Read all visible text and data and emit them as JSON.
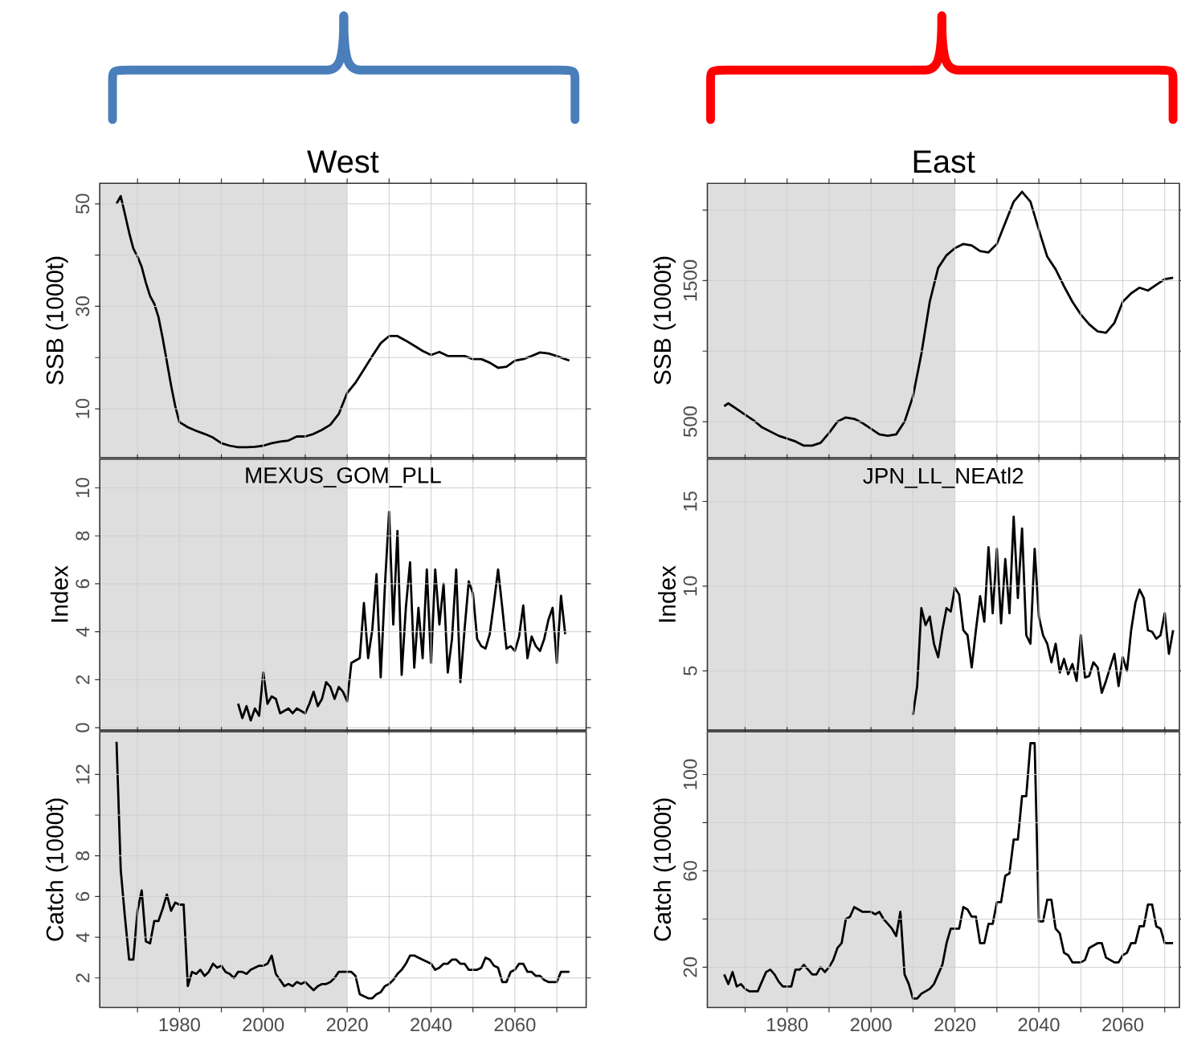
{
  "chart_data": [
    {
      "type": "line",
      "title": "West",
      "ylabel": "SSB (1000t)",
      "grid": true,
      "tick_labels": "y",
      "xlim": [
        1961,
        2077
      ],
      "ylim": [
        0.5,
        54
      ],
      "xticks": [
        {
          "value": 1970,
          "label": null
        },
        1980,
        {
          "value": 1990,
          "label": null
        },
        2000,
        {
          "value": 2010,
          "label": null
        },
        2020,
        {
          "value": 2030,
          "label": null
        },
        2040,
        {
          "value": 2050,
          "label": null
        },
        2060,
        {
          "value": 2070,
          "label": null
        }
      ],
      "yticks": [
        10,
        {
          "value": 20,
          "label": null
        },
        30,
        {
          "value": 40,
          "label": null
        },
        50
      ],
      "bands": [
        {
          "axis": "x",
          "from": 1961,
          "to": 2020,
          "color": "#dedede"
        }
      ],
      "x": [
        1965,
        1966,
        1967,
        1968,
        1969,
        1970,
        1971,
        1972,
        1973,
        1974,
        1975,
        1976,
        1977,
        1978,
        1979,
        1980,
        1982,
        1984,
        1986,
        1988,
        1990,
        1992,
        1994,
        1996,
        1998,
        2000,
        2002,
        2004,
        2006,
        2008,
        2010,
        2012,
        2014,
        2016,
        2018,
        2020,
        2022,
        2024,
        2026,
        2028,
        2030,
        2032,
        2034,
        2036,
        2038,
        2040,
        2042,
        2044,
        2046,
        2048,
        2050,
        2052,
        2054,
        2056,
        2058,
        2060,
        2062,
        2064,
        2066,
        2068,
        2070,
        2073
      ],
      "series": [
        {
          "color": "#000000",
          "values": [
            50,
            51.5,
            48,
            44.4,
            41.3,
            39.7,
            37.7,
            34.6,
            32,
            30.5,
            27.9,
            23.8,
            19.2,
            14.6,
            10.5,
            7.4,
            6.4,
            5.7,
            5.1,
            4.4,
            3.3,
            2.8,
            2.5,
            2.5,
            2.6,
            2.8,
            3.3,
            3.6,
            3.8,
            4.6,
            4.6,
            5.1,
            5.9,
            6.9,
            9,
            13.1,
            15.1,
            17.7,
            20.3,
            22.8,
            24.2,
            24.2,
            23.3,
            22.3,
            21.3,
            20.5,
            21.1,
            20.3,
            20.3,
            20.3,
            19.7,
            19.7,
            19,
            18,
            18.2,
            19.4,
            19.7,
            20.3,
            21,
            20.8,
            20.3,
            19.4
          ]
        }
      ]
    },
    {
      "type": "line",
      "title": "East",
      "ylabel": "SSB (1000t)",
      "grid": true,
      "tick_labels": "y",
      "xlim": [
        1961,
        2073.5
      ],
      "ylim": [
        246,
        2190
      ],
      "xticks": [
        {
          "value": 1970,
          "label": null
        },
        1980,
        {
          "value": 1990,
          "label": null
        },
        2000,
        {
          "value": 2010,
          "label": null
        },
        2020,
        {
          "value": 2030,
          "label": null
        },
        2040,
        {
          "value": 2050,
          "label": null
        },
        2060,
        {
          "value": 2070,
          "label": null
        }
      ],
      "yticks": [
        500,
        {
          "value": 1000,
          "label": null
        },
        1500,
        {
          "value": 2000,
          "label": null
        }
      ],
      "bands": [
        {
          "axis": "x",
          "from": 1961,
          "to": 2020,
          "color": "#dedede"
        }
      ],
      "x": [
        1965,
        1966,
        1968,
        1970,
        1972,
        1974,
        1976,
        1978,
        1980,
        1982,
        1984,
        1986,
        1988,
        1990,
        1992,
        1994,
        1996,
        1998,
        2000,
        2002,
        2004,
        2006,
        2008,
        2010,
        2012,
        2014,
        2016,
        2018,
        2020,
        2022,
        2024,
        2026,
        2028,
        2030,
        2032,
        2034,
        2036,
        2038,
        2040,
        2042,
        2044,
        2046,
        2048,
        2050,
        2052,
        2054,
        2056,
        2058,
        2060,
        2062,
        2064,
        2066,
        2068,
        2070,
        2072
      ],
      "series": [
        {
          "color": "#000000",
          "values": [
            610,
            630,
            590,
            550,
            510,
            460,
            430,
            400,
            380,
            360,
            330,
            330,
            350,
            420,
            500,
            530,
            520,
            490,
            450,
            410,
            400,
            410,
            500,
            680,
            980,
            1350,
            1590,
            1680,
            1730,
            1760,
            1750,
            1710,
            1700,
            1760,
            1910,
            2060,
            2130,
            2060,
            1860,
            1670,
            1580,
            1460,
            1350,
            1260,
            1190,
            1140,
            1130,
            1200,
            1350,
            1410,
            1450,
            1430,
            1470,
            1510,
            1520
          ]
        }
      ]
    },
    {
      "type": "line",
      "ylabel": "Index",
      "annotations": [
        "MEXUS_GOM_PLL"
      ],
      "grid": true,
      "tick_labels": "y",
      "xlim": [
        1961,
        2077
      ],
      "ylim": [
        -0.1,
        11.2
      ],
      "xticks": [
        {
          "value": 1970,
          "label": null
        },
        1980,
        {
          "value": 1990,
          "label": null
        },
        2000,
        {
          "value": 2010,
          "label": null
        },
        2020,
        {
          "value": 2030,
          "label": null
        },
        2040,
        {
          "value": 2050,
          "label": null
        },
        2060,
        {
          "value": 2070,
          "label": null
        }
      ],
      "yticks": [
        0,
        2,
        4,
        6,
        8,
        10
      ],
      "bands": [
        {
          "axis": "x",
          "from": 1961,
          "to": 2020,
          "color": "#dedede"
        }
      ],
      "x": [
        1994,
        1995,
        1996,
        1997,
        1998,
        1999,
        2000,
        2001,
        2002,
        2003,
        2004,
        2005,
        2006,
        2007,
        2008,
        2009,
        2010,
        2011,
        2012,
        2013,
        2014,
        2015,
        2016,
        2017,
        2018,
        2019,
        2020,
        2021,
        2022,
        2023,
        2024,
        2025,
        2026,
        2027,
        2028,
        2029,
        2030,
        2031,
        2032,
        2033,
        2034,
        2035,
        2036,
        2037,
        2038,
        2039,
        2040,
        2041,
        2042,
        2043,
        2044,
        2045,
        2046,
        2047,
        2048,
        2049,
        2050,
        2051,
        2052,
        2053,
        2054,
        2055,
        2056,
        2057,
        2058,
        2059,
        2060,
        2061,
        2062,
        2063,
        2064,
        2065,
        2066,
        2067,
        2068,
        2069,
        2070,
        2071,
        2072
      ],
      "series": [
        {
          "color": "#000000",
          "values": [
            1.0,
            0.4,
            0.9,
            0.3,
            0.8,
            0.5,
            2.3,
            1.0,
            1.3,
            1.2,
            0.6,
            0.7,
            0.8,
            0.6,
            0.8,
            0.7,
            0.6,
            1.0,
            1.5,
            0.9,
            1.2,
            1.9,
            1.7,
            1.2,
            1.7,
            1.5,
            1.1,
            2.7,
            2.8,
            2.9,
            5.2,
            2.9,
            4.1,
            6.4,
            2.1,
            5.9,
            9.0,
            4.3,
            8.2,
            2.2,
            5.0,
            6.9,
            2.5,
            5.0,
            2.9,
            6.6,
            2.7,
            6.6,
            4.3,
            6.0,
            2.3,
            3.7,
            6.6,
            1.9,
            4.1,
            6.1,
            5.6,
            3.7,
            3.4,
            3.3,
            3.9,
            5.2,
            6.6,
            5.0,
            3.3,
            3.4,
            3.2,
            3.8,
            5.1,
            2.9,
            3.8,
            3.4,
            3.2,
            3.7,
            4.5,
            5.0,
            2.7,
            5.5,
            3.9
          ]
        }
      ]
    },
    {
      "type": "line",
      "ylabel": "Index",
      "annotations": [
        "JPN_LL_NEAtl2"
      ],
      "grid": true,
      "tick_labels": "y",
      "xlim": [
        1961,
        2073.5
      ],
      "ylim": [
        1.5,
        17.5
      ],
      "xticks": [
        {
          "value": 1970,
          "label": null
        },
        1980,
        {
          "value": 1990,
          "label": null
        },
        2000,
        {
          "value": 2010,
          "label": null
        },
        2020,
        {
          "value": 2030,
          "label": null
        },
        2040,
        {
          "value": 2050,
          "label": null
        },
        2060,
        {
          "value": 2070,
          "label": null
        }
      ],
      "yticks": [
        5,
        10,
        15
      ],
      "bands": [
        {
          "axis": "x",
          "from": 1961,
          "to": 2020,
          "color": "#dedede"
        }
      ],
      "x": [
        2010,
        2011,
        2012,
        2013,
        2014,
        2015,
        2016,
        2017,
        2018,
        2019,
        2020,
        2021,
        2022,
        2023,
        2024,
        2025,
        2026,
        2027,
        2028,
        2029,
        2030,
        2031,
        2032,
        2033,
        2034,
        2035,
        2036,
        2037,
        2038,
        2039,
        2040,
        2041,
        2042,
        2043,
        2044,
        2045,
        2046,
        2047,
        2048,
        2049,
        2050,
        2051,
        2052,
        2053,
        2054,
        2055,
        2056,
        2057,
        2058,
        2059,
        2060,
        2061,
        2062,
        2063,
        2064,
        2065,
        2066,
        2067,
        2068,
        2069,
        2070,
        2071,
        2072
      ],
      "series": [
        {
          "color": "#000000",
          "values": [
            2.4,
            4.1,
            8.7,
            7.7,
            8.2,
            6.6,
            5.8,
            7.4,
            8.7,
            8.5,
            9.9,
            9.5,
            7.4,
            7.1,
            5.2,
            7.4,
            9.4,
            7.9,
            12.3,
            8.4,
            12.2,
            7.8,
            11.6,
            8.4,
            14.1,
            9.3,
            13.4,
            7.1,
            6.6,
            12.2,
            8.2,
            7.1,
            6.6,
            5.5,
            6.6,
            4.9,
            5.7,
            4.8,
            5.4,
            4.4,
            7.1,
            4.6,
            4.7,
            5.5,
            5.2,
            3.7,
            4.4,
            5.2,
            6.0,
            4.1,
            5.8,
            5.0,
            7.4,
            9.0,
            9.8,
            9.3,
            7.4,
            7.3,
            6.9,
            7.1,
            8.4,
            6.0,
            7.4
          ]
        }
      ]
    },
    {
      "type": "line",
      "ylabel": "Catch (1000t)",
      "grid": true,
      "xlim": [
        1961,
        2077
      ],
      "ylim": [
        0.55,
        14.1
      ],
      "xticks": [
        {
          "value": 1970,
          "label": null
        },
        1980,
        {
          "value": 1990,
          "label": null
        },
        2000,
        {
          "value": 2010,
          "label": null
        },
        2020,
        {
          "value": 2030,
          "label": null
        },
        2040,
        {
          "value": 2050,
          "label": null
        },
        2060,
        {
          "value": 2070,
          "label": null
        }
      ],
      "yticks": [
        2,
        4,
        6,
        8,
        {
          "value": 10,
          "label": null
        },
        12
      ],
      "bands": [
        {
          "axis": "x",
          "from": 1961,
          "to": 2020,
          "color": "#dedede"
        }
      ],
      "x": [
        1965,
        1966,
        1967,
        1968,
        1969,
        1970,
        1971,
        1972,
        1973,
        1974,
        1975,
        1976,
        1977,
        1978,
        1979,
        1980,
        1981,
        1982,
        1983,
        1984,
        1985,
        1986,
        1987,
        1988,
        1989,
        1990,
        1991,
        1992,
        1993,
        1994,
        1995,
        1996,
        1997,
        1998,
        1999,
        2000,
        2001,
        2002,
        2003,
        2004,
        2005,
        2006,
        2007,
        2008,
        2009,
        2010,
        2011,
        2012,
        2013,
        2014,
        2015,
        2016,
        2017,
        2018,
        2019,
        2020,
        2021,
        2022,
        2023,
        2024,
        2025,
        2026,
        2027,
        2028,
        2029,
        2030,
        2031,
        2032,
        2033,
        2034,
        2035,
        2036,
        2037,
        2038,
        2039,
        2040,
        2041,
        2042,
        2043,
        2044,
        2045,
        2046,
        2047,
        2048,
        2049,
        2050,
        2051,
        2052,
        2053,
        2054,
        2055,
        2056,
        2057,
        2058,
        2059,
        2060,
        2061,
        2062,
        2063,
        2064,
        2065,
        2066,
        2067,
        2068,
        2069,
        2070,
        2071,
        2072,
        2073
      ],
      "series": [
        {
          "color": "#000000",
          "values": [
            13.6,
            7.3,
            5.0,
            2.9,
            2.9,
            5.3,
            6.3,
            3.8,
            3.7,
            4.8,
            4.8,
            5.4,
            6.1,
            5.3,
            5.7,
            5.6,
            5.6,
            1.6,
            2.3,
            2.2,
            2.4,
            2.1,
            2.3,
            2.7,
            2.5,
            2.6,
            2.3,
            2.2,
            2.0,
            2.3,
            2.3,
            2.2,
            2.4,
            2.5,
            2.6,
            2.6,
            2.7,
            3.1,
            2.2,
            1.9,
            1.6,
            1.7,
            1.6,
            1.8,
            1.7,
            1.8,
            1.6,
            1.4,
            1.6,
            1.7,
            1.7,
            1.8,
            2.0,
            2.3,
            2.3,
            2.3,
            2.3,
            2.1,
            1.2,
            1.1,
            1.0,
            1.0,
            1.2,
            1.3,
            1.6,
            1.7,
            1.9,
            2.2,
            2.4,
            2.7,
            3.1,
            3.1,
            3.0,
            2.9,
            2.8,
            2.7,
            2.4,
            2.5,
            2.7,
            2.7,
            2.9,
            2.9,
            2.7,
            2.7,
            2.4,
            2.4,
            2.4,
            2.5,
            3.0,
            2.9,
            2.6,
            2.5,
            1.8,
            1.8,
            2.3,
            2.4,
            2.7,
            2.7,
            2.3,
            2.3,
            2.1,
            2.1,
            1.9,
            1.8,
            1.8,
            1.8,
            2.3,
            2.3,
            2.3
          ]
        }
      ]
    },
    {
      "type": "line",
      "ylabel": "Catch (1000t)",
      "grid": true,
      "xlim": [
        1961,
        2073.5
      ],
      "ylim": [
        3.3,
        117.8
      ],
      "xticks": [
        {
          "value": 1970,
          "label": null
        },
        1980,
        {
          "value": 1990,
          "label": null
        },
        2000,
        {
          "value": 2010,
          "label": null
        },
        2020,
        {
          "value": 2030,
          "label": null
        },
        2040,
        {
          "value": 2050,
          "label": null
        },
        2060,
        {
          "value": 2070,
          "label": null
        }
      ],
      "yticks": [
        20,
        {
          "value": 40,
          "label": null
        },
        60,
        {
          "value": 80,
          "label": null
        },
        100
      ],
      "bands": [
        {
          "axis": "x",
          "from": 1961,
          "to": 2020,
          "color": "#dedede"
        }
      ],
      "x": [
        1965,
        1966,
        1967,
        1968,
        1969,
        1970,
        1971,
        1972,
        1973,
        1974,
        1975,
        1976,
        1977,
        1978,
        1979,
        1980,
        1981,
        1982,
        1983,
        1984,
        1985,
        1986,
        1987,
        1988,
        1989,
        1990,
        1991,
        1992,
        1993,
        1994,
        1995,
        1996,
        1997,
        1998,
        1999,
        2000,
        2001,
        2002,
        2003,
        2004,
        2005,
        2006,
        2007,
        2008,
        2009,
        2010,
        2011,
        2012,
        2013,
        2014,
        2015,
        2016,
        2017,
        2018,
        2019,
        2020,
        2021,
        2022,
        2023,
        2024,
        2025,
        2026,
        2027,
        2028,
        2029,
        2030,
        2031,
        2032,
        2033,
        2034,
        2035,
        2036,
        2037,
        2038,
        2039,
        2040,
        2041,
        2042,
        2043,
        2044,
        2045,
        2046,
        2047,
        2048,
        2049,
        2050,
        2051,
        2052,
        2053,
        2054,
        2055,
        2056,
        2057,
        2058,
        2059,
        2060,
        2061,
        2062,
        2063,
        2064,
        2065,
        2066,
        2067,
        2068,
        2069,
        2070,
        2071,
        2072
      ],
      "series": [
        {
          "color": "#000000",
          "values": [
            17,
            13,
            18,
            12,
            13,
            11,
            10,
            10,
            10,
            14,
            18,
            19,
            17,
            14,
            12,
            12,
            12,
            19,
            19,
            21,
            19,
            17,
            17,
            20,
            18,
            20,
            23,
            28,
            30,
            40,
            41,
            45,
            44,
            43,
            43,
            43,
            42,
            43,
            40,
            38,
            36,
            33,
            43,
            17,
            13,
            7,
            7,
            9,
            10,
            11,
            13,
            17,
            21,
            30,
            36,
            36,
            36,
            45,
            44,
            41,
            41,
            30,
            30,
            38,
            38,
            47,
            47,
            58,
            59,
            73,
            73,
            91,
            91,
            113,
            113,
            39,
            39,
            48,
            48,
            36,
            34,
            26,
            25,
            22,
            22,
            22,
            23,
            28,
            29,
            30,
            30,
            24,
            23,
            22,
            22,
            25,
            26,
            30,
            30,
            37,
            37,
            46,
            46,
            37,
            36,
            30,
            30,
            30
          ]
        }
      ]
    }
  ]
}
